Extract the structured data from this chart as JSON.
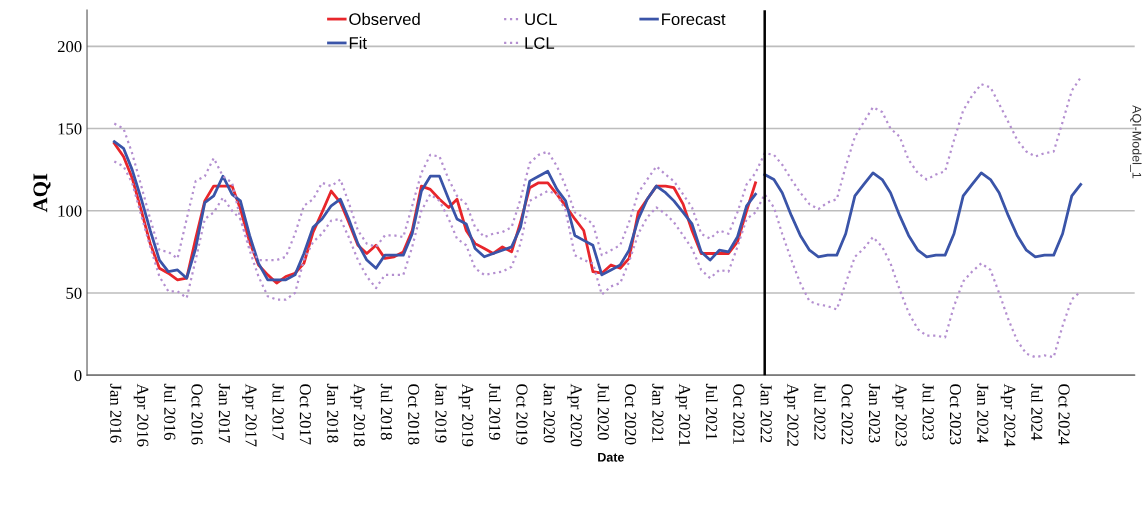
{
  "chart_data": {
    "type": "line",
    "xlabel": "Date",
    "ylabel": "AQI",
    "annotations": [
      "AQI-Model_1"
    ],
    "x": [
      "2016-01",
      "2016-02",
      "2016-03",
      "2016-04",
      "2016-05",
      "2016-06",
      "2016-07",
      "2016-08",
      "2016-09",
      "2016-10",
      "2016-11",
      "2016-12",
      "2017-01",
      "2017-02",
      "2017-03",
      "2017-04",
      "2017-05",
      "2017-06",
      "2017-07",
      "2017-08",
      "2017-09",
      "2017-10",
      "2017-11",
      "2017-12",
      "2018-01",
      "2018-02",
      "2018-03",
      "2018-04",
      "2018-05",
      "2018-06",
      "2018-07",
      "2018-08",
      "2018-09",
      "2018-10",
      "2018-11",
      "2018-12",
      "2019-01",
      "2019-02",
      "2019-03",
      "2019-04",
      "2019-05",
      "2019-06",
      "2019-07",
      "2019-08",
      "2019-09",
      "2019-10",
      "2019-11",
      "2019-12",
      "2020-01",
      "2020-02",
      "2020-03",
      "2020-04",
      "2020-05",
      "2020-06",
      "2020-07",
      "2020-08",
      "2020-09",
      "2020-10",
      "2020-11",
      "2020-12",
      "2021-01",
      "2021-02",
      "2021-03",
      "2021-04",
      "2021-05",
      "2021-06",
      "2021-07",
      "2021-08",
      "2021-09",
      "2021-10",
      "2021-11",
      "2021-12",
      "2022-01",
      "2022-02",
      "2022-03",
      "2022-04",
      "2022-05",
      "2022-06",
      "2022-07",
      "2022-08",
      "2022-09",
      "2022-10",
      "2022-11",
      "2022-12",
      "2023-01",
      "2023-02",
      "2023-03",
      "2023-04",
      "2023-05",
      "2023-06",
      "2023-07",
      "2023-08",
      "2023-09",
      "2023-10",
      "2023-11",
      "2023-12",
      "2024-01",
      "2024-02",
      "2024-03",
      "2024-04",
      "2024-05",
      "2024-06",
      "2024-07",
      "2024-08",
      "2024-09",
      "2024-10",
      "2024-11",
      "2024-12"
    ],
    "series": [
      {
        "name": "Observed",
        "color": "#e8262b",
        "line_style": "solid",
        "values": [
          141,
          133,
          120,
          100,
          80,
          65,
          62,
          58,
          59,
          83,
          106,
          115,
          115,
          115,
          101,
          81,
          67,
          61,
          56,
          60,
          62,
          68,
          87,
          99,
          112,
          105,
          93,
          79,
          74,
          79,
          71,
          72,
          75,
          88,
          115,
          113,
          107,
          102,
          107,
          88,
          80,
          77,
          74,
          78,
          75,
          93,
          114,
          117,
          117,
          110,
          103,
          95,
          88,
          63,
          62,
          67,
          65,
          71,
          99,
          107,
          115,
          115,
          114,
          104,
          88,
          74,
          74,
          74,
          74,
          81,
          100,
          117,
          null,
          null,
          null,
          null,
          null,
          null,
          null,
          null,
          null,
          null,
          null,
          null,
          null,
          null,
          null,
          null,
          null,
          null,
          null,
          null,
          null,
          null,
          null,
          null,
          null,
          null,
          null,
          null,
          null,
          null,
          null,
          null,
          null,
          null,
          null,
          null
        ]
      },
      {
        "name": "Fit",
        "color": "#3a54a8",
        "line_style": "solid",
        "values": [
          142,
          138,
          125,
          107,
          88,
          70,
          63,
          64,
          59,
          77,
          105,
          109,
          121,
          110,
          106,
          85,
          68,
          58,
          58,
          58,
          61,
          74,
          90,
          95,
          103,
          107,
          95,
          80,
          70,
          65,
          73,
          73,
          73,
          86,
          112,
          121,
          121,
          107,
          95,
          92,
          77,
          72,
          74,
          76,
          78,
          90,
          118,
          121,
          124,
          113,
          106,
          85,
          82,
          79,
          61,
          64,
          67,
          76,
          95,
          107,
          115,
          111,
          106,
          99,
          92,
          75,
          70,
          76,
          75,
          84,
          103,
          110,
          null,
          null,
          null,
          null,
          null,
          null,
          null,
          null,
          null,
          null,
          null,
          null,
          null,
          null,
          null,
          null,
          null,
          null,
          null,
          null,
          null,
          null,
          null,
          null,
          null,
          null,
          null,
          null,
          null,
          null,
          null,
          null,
          null,
          null,
          null,
          null
        ]
      },
      {
        "name": "UCL",
        "color": "#b48fd0",
        "line_style": "dotted",
        "values": [
          153,
          150,
          135,
          115,
          95,
          76,
          75,
          71,
          95,
          118,
          121,
          132,
          121,
          117,
          95,
          78,
          70,
          70,
          70,
          72,
          86,
          103,
          107,
          117,
          115,
          119,
          105,
          88,
          80,
          78,
          85,
          85,
          84,
          103,
          123,
          134,
          133,
          119,
          109,
          104,
          90,
          84,
          86,
          87,
          90,
          107,
          129,
          134,
          136,
          127,
          115,
          99,
          96,
          92,
          73,
          76,
          79,
          93,
          111,
          119,
          127,
          122,
          118,
          110,
          102,
          86,
          83,
          88,
          86,
          99,
          116,
          123,
          135,
          134,
          128,
          119,
          111,
          104,
          101,
          105,
          107,
          127,
          145,
          154,
          163,
          160,
          150,
          145,
          131,
          123,
          119,
          122,
          124,
          143,
          161,
          170,
          177,
          175,
          165,
          154,
          143,
          136,
          133,
          135,
          136,
          154,
          173,
          181
        ]
      },
      {
        "name": "LCL",
        "color": "#b48fd0",
        "line_style": "dotted",
        "values": [
          130,
          127,
          117,
          97,
          78,
          60,
          51,
          51,
          47,
          70,
          95,
          99,
          108,
          100,
          95,
          76,
          60,
          48,
          46,
          46,
          50,
          70,
          81,
          86,
          94,
          95,
          84,
          70,
          60,
          53,
          61,
          61,
          61,
          78,
          100,
          110,
          106,
          95,
          83,
          79,
          65,
          61,
          62,
          63,
          66,
          80,
          106,
          109,
          112,
          110,
          100,
          73,
          70,
          68,
          49,
          54,
          56,
          69,
          86,
          96,
          102,
          98,
          93,
          85,
          77,
          64,
          59,
          64,
          63,
          78,
          95,
          99,
          110,
          102,
          86,
          70,
          56,
          45,
          43,
          42,
          40,
          56,
          72,
          77,
          84,
          78,
          68,
          52,
          38,
          28,
          24,
          24,
          23,
          42,
          57,
          63,
          68,
          64,
          50,
          34,
          21,
          13,
          11,
          12,
          11,
          30,
          46,
          51
        ]
      },
      {
        "name": "Forecast",
        "color": "#3a54a8",
        "line_style": "solid",
        "values": [
          null,
          null,
          null,
          null,
          null,
          null,
          null,
          null,
          null,
          null,
          null,
          null,
          null,
          null,
          null,
          null,
          null,
          null,
          null,
          null,
          null,
          null,
          null,
          null,
          null,
          null,
          null,
          null,
          null,
          null,
          null,
          null,
          null,
          null,
          null,
          null,
          null,
          null,
          null,
          null,
          null,
          null,
          null,
          null,
          null,
          null,
          null,
          null,
          null,
          null,
          null,
          null,
          null,
          null,
          null,
          null,
          null,
          null,
          null,
          null,
          null,
          null,
          null,
          null,
          null,
          null,
          null,
          null,
          null,
          null,
          null,
          null,
          122,
          119,
          111,
          97,
          85,
          76,
          72,
          73,
          73,
          86,
          109,
          116,
          123,
          119,
          111,
          97,
          85,
          76,
          72,
          73,
          73,
          86,
          109,
          116,
          123,
          119,
          111,
          97,
          85,
          76,
          72,
          73,
          73,
          86,
          109,
          116
        ]
      }
    ],
    "xlim": [
      "2015-10",
      "2025-06"
    ],
    "xticks": [
      {
        "value": "2016-01",
        "label": "Jan 2016"
      },
      {
        "value": "2016-04",
        "label": "Apr 2016"
      },
      {
        "value": "2016-07",
        "label": "Jul 2016"
      },
      {
        "value": "2016-10",
        "label": "Oct 2016"
      },
      {
        "value": "2017-01",
        "label": "Jan 2017"
      },
      {
        "value": "2017-04",
        "label": "Apr 2017"
      },
      {
        "value": "2017-07",
        "label": "Jul 2017"
      },
      {
        "value": "2017-10",
        "label": "Oct 2017"
      },
      {
        "value": "2018-01",
        "label": "Jan 2018"
      },
      {
        "value": "2018-04",
        "label": "Apr 2018"
      },
      {
        "value": "2018-07",
        "label": "Jul 2018"
      },
      {
        "value": "2018-10",
        "label": "Oct 2018"
      },
      {
        "value": "2019-01",
        "label": "Jan 2019"
      },
      {
        "value": "2019-04",
        "label": "Apr 2019"
      },
      {
        "value": "2019-07",
        "label": "Jul 2019"
      },
      {
        "value": "2019-10",
        "label": "Oct 2019"
      },
      {
        "value": "2020-01",
        "label": "Jan 2020"
      },
      {
        "value": "2020-04",
        "label": "Apr 2020"
      },
      {
        "value": "2020-07",
        "label": "Jul 2020"
      },
      {
        "value": "2020-10",
        "label": "Oct 2020"
      },
      {
        "value": "2021-01",
        "label": "Jan 2021"
      },
      {
        "value": "2021-04",
        "label": "Apr 2021"
      },
      {
        "value": "2021-07",
        "label": "Jul 2021"
      },
      {
        "value": "2021-10",
        "label": "Oct 2021"
      },
      {
        "value": "2022-01",
        "label": "Jan 2022"
      },
      {
        "value": "2022-04",
        "label": "Apr 2022"
      },
      {
        "value": "2022-07",
        "label": "Jul 2022"
      },
      {
        "value": "2022-10",
        "label": "Oct 2022"
      },
      {
        "value": "2023-01",
        "label": "Jan 2023"
      },
      {
        "value": "2023-04",
        "label": "Apr 2023"
      },
      {
        "value": "2023-07",
        "label": "Jul 2023"
      },
      {
        "value": "2023-10",
        "label": "Oct 2023"
      },
      {
        "value": "2024-01",
        "label": "Jan 2024"
      },
      {
        "value": "2024-04",
        "label": "Apr 2024"
      },
      {
        "value": "2024-07",
        "label": "Jul 2024"
      },
      {
        "value": "2024-10",
        "label": "Oct 2024"
      }
    ],
    "ylim": [
      0,
      222
    ],
    "yticks": [
      0,
      50,
      100,
      150,
      200
    ],
    "grid": "y",
    "legend": "top",
    "marker": "none",
    "ref_lines": [
      {
        "axis": "x",
        "value": "2022-01",
        "label": null,
        "color": "#000000",
        "line_style": "solid"
      }
    ]
  }
}
